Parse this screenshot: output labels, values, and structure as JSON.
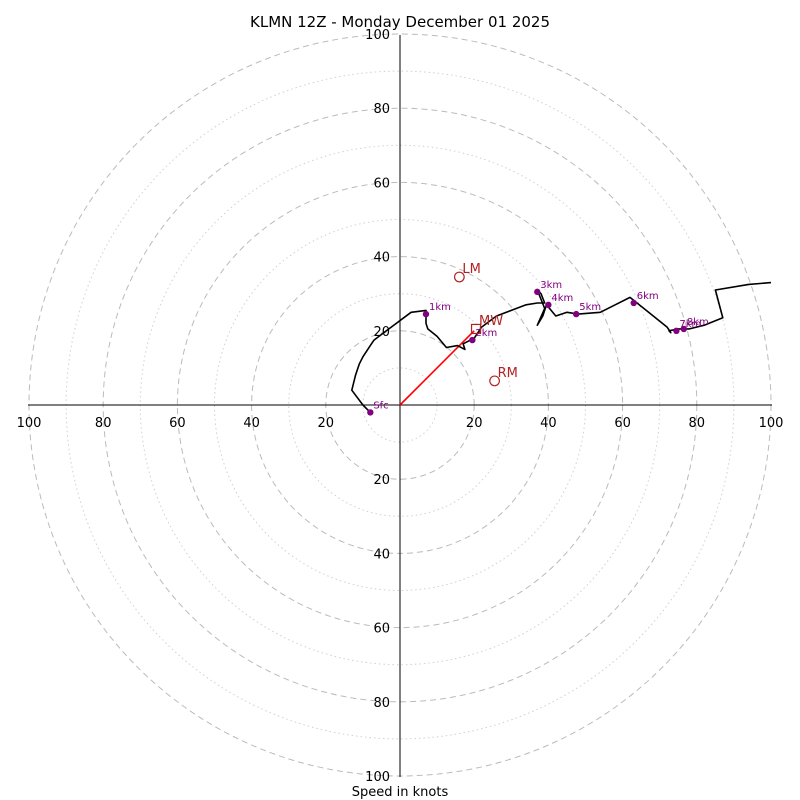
{
  "chart_data": {
    "type": "hodograph",
    "title": "KLMN 12Z - Monday December 01 2025",
    "xlabel": "Speed in knots",
    "ring_labels": [
      "20",
      "40",
      "60",
      "80",
      "100"
    ],
    "xlim": [
      -100,
      100
    ],
    "ylim": [
      -100,
      100
    ],
    "major_rings": [
      20,
      40,
      60,
      80,
      100
    ],
    "minor_rings": [
      10,
      30,
      50,
      70,
      90
    ],
    "hodograph_trace": [
      [
        -8,
        -2
      ],
      [
        -10,
        0
      ],
      [
        -13,
        4
      ],
      [
        -12,
        8
      ],
      [
        -11,
        11
      ],
      [
        -10,
        13
      ],
      [
        -8,
        16
      ],
      [
        -7,
        17.5
      ],
      [
        -5,
        19
      ],
      [
        -3,
        20.5
      ],
      [
        -1,
        22
      ],
      [
        1,
        23.5
      ],
      [
        3,
        25
      ],
      [
        7,
        25.5
      ],
      [
        7,
        22
      ],
      [
        7.5,
        20.5
      ],
      [
        10,
        18.5
      ],
      [
        12.5,
        15.5
      ],
      [
        15.5,
        16
      ],
      [
        17.5,
        15
      ],
      [
        17,
        16.5
      ],
      [
        20,
        18
      ],
      [
        22,
        21
      ],
      [
        26,
        24
      ],
      [
        30,
        25.5
      ],
      [
        34,
        27
      ],
      [
        37,
        27.5
      ],
      [
        39,
        27.5
      ],
      [
        38,
        30
      ],
      [
        37,
        31
      ],
      [
        39,
        26
      ],
      [
        37,
        21.5
      ],
      [
        38.5,
        24
      ],
      [
        39.5,
        27
      ],
      [
        42,
        24
      ],
      [
        45,
        25
      ],
      [
        48,
        24.5
      ],
      [
        54,
        25
      ],
      [
        58,
        27
      ],
      [
        62,
        29
      ],
      [
        67,
        25
      ],
      [
        72,
        21
      ],
      [
        73,
        19.5
      ],
      [
        72.5,
        20
      ],
      [
        75,
        20.5
      ],
      [
        78,
        20.5
      ],
      [
        82,
        21.5
      ],
      [
        87,
        23.5
      ],
      [
        85,
        31
      ],
      [
        94,
        32.5
      ],
      [
        100,
        33
      ]
    ],
    "height_markers": [
      {
        "label": "Sfc",
        "u": -8,
        "v": -2
      },
      {
        "label": "1km",
        "u": 7,
        "v": 24.5
      },
      {
        "label": "2km",
        "u": 19.5,
        "v": 17.5
      },
      {
        "label": "3km",
        "u": 37,
        "v": 30.5
      },
      {
        "label": "4km",
        "u": 40,
        "v": 27
      },
      {
        "label": "5km",
        "u": 47.5,
        "v": 24.5
      },
      {
        "label": "6km",
        "u": 63,
        "v": 27.5
      },
      {
        "label": "7km",
        "u": 74.5,
        "v": 20
      },
      {
        "label": "8km",
        "u": 76.5,
        "v": 20.5
      }
    ],
    "storm_motion": [
      {
        "label": "LM",
        "u": 16,
        "v": 34.5,
        "marker": "circle"
      },
      {
        "label": "MW",
        "u": 20.5,
        "v": 20.5,
        "marker": "square"
      },
      {
        "label": "RM",
        "u": 25.5,
        "v": 6.5,
        "marker": "circle"
      }
    ],
    "shear_vector": {
      "from": [
        0,
        0
      ],
      "to": [
        20,
        20
      ]
    },
    "colors": {
      "trace": "#000000",
      "height_marker": "#800080",
      "storm_motion": "#b22222",
      "shear_vector": "#ff0000",
      "major_ring": "#bbbbbb",
      "minor_ring": "#d0d0d0"
    }
  }
}
